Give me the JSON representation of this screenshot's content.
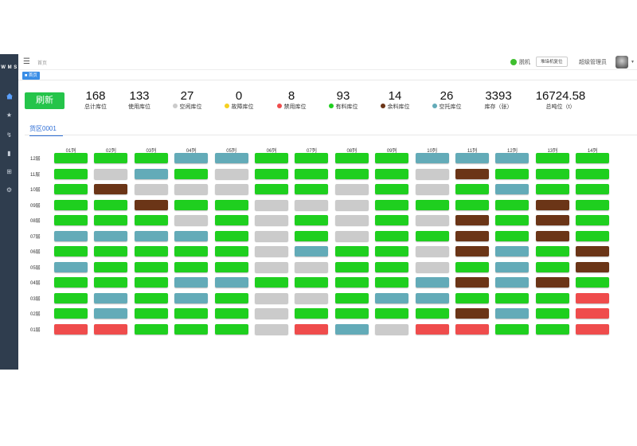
{
  "sidebar": {
    "logo": "W M S",
    "items": [
      "home-icon",
      "star-icon",
      "history-icon",
      "book-icon",
      "grid-icon",
      "gear-icon"
    ]
  },
  "topbar": {
    "menu_icon": "menu-toggle-icon",
    "breadcrumb": "首页",
    "user_text": "脱机",
    "mode_button": "堆垛机复位",
    "admin_name": "超级管理员"
  },
  "tabs": {
    "home": "■ 首页"
  },
  "refresh_label": "刷新",
  "colors": {
    "green": "#1fcf1f",
    "gray": "#cbcbcb",
    "blue": "#63abb8",
    "brown": "#6b3517",
    "red": "#ef4c4c",
    "yellow": "#f5d020"
  },
  "stats": [
    {
      "value": "168",
      "label": "总计库位",
      "dot": ""
    },
    {
      "value": "133",
      "label": "使用库位",
      "dot": ""
    },
    {
      "value": "27",
      "label": "空闲库位",
      "dot": "#cbcbcb"
    },
    {
      "value": "0",
      "label": "故障库位",
      "dot": "#f5d020"
    },
    {
      "value": "8",
      "label": "禁用库位",
      "dot": "#ef4c4c"
    },
    {
      "value": "93",
      "label": "有料库位",
      "dot": "#1fcf1f"
    },
    {
      "value": "14",
      "label": "余料库位",
      "dot": "#6b3517"
    },
    {
      "value": "26",
      "label": "空托库位",
      "dot": "#63abb8"
    },
    {
      "value": "3393",
      "label": "库存（张）",
      "dot": ""
    },
    {
      "value": "16724.58",
      "label": "总吨位（t）",
      "dot": ""
    }
  ],
  "zone_tab": "货区0001",
  "columns": [
    "01列",
    "02列",
    "03列",
    "04列",
    "05列",
    "06列",
    "07列",
    "08列",
    "09列",
    "10列",
    "11列",
    "12列",
    "13列",
    "14列"
  ],
  "rows": [
    {
      "label": "12层",
      "cells": [
        "G",
        "G",
        "G",
        "B",
        "B",
        "G",
        "G",
        "G",
        "G",
        "B",
        "B",
        "B",
        "G",
        "G"
      ]
    },
    {
      "label": "11层",
      "cells": [
        "G",
        "Y",
        "B",
        "G",
        "Y",
        "G",
        "G",
        "G",
        "G",
        "Y",
        "N",
        "G",
        "G",
        "G"
      ]
    },
    {
      "label": "10层",
      "cells": [
        "G",
        "N",
        "Y",
        "Y",
        "Y",
        "G",
        "G",
        "Y",
        "G",
        "Y",
        "G",
        "B",
        "G",
        "G"
      ]
    },
    {
      "label": "09层",
      "cells": [
        "G",
        "G",
        "N",
        "G",
        "G",
        "Y",
        "Y",
        "Y",
        "G",
        "G",
        "G",
        "G",
        "N",
        "G"
      ]
    },
    {
      "label": "08层",
      "cells": [
        "G",
        "G",
        "G",
        "Y",
        "G",
        "Y",
        "G",
        "Y",
        "G",
        "Y",
        "N",
        "G",
        "N",
        "G"
      ]
    },
    {
      "label": "07层",
      "cells": [
        "B",
        "B",
        "B",
        "B",
        "G",
        "Y",
        "G",
        "Y",
        "G",
        "G",
        "N",
        "G",
        "N",
        "G"
      ]
    },
    {
      "label": "06层",
      "cells": [
        "G",
        "G",
        "G",
        "G",
        "G",
        "Y",
        "B",
        "G",
        "G",
        "Y",
        "N",
        "B",
        "G",
        "N"
      ]
    },
    {
      "label": "05层",
      "cells": [
        "B",
        "G",
        "G",
        "G",
        "G",
        "Y",
        "Y",
        "G",
        "G",
        "Y",
        "G",
        "B",
        "G",
        "N"
      ]
    },
    {
      "label": "04层",
      "cells": [
        "G",
        "G",
        "G",
        "B",
        "B",
        "G",
        "G",
        "G",
        "G",
        "B",
        "N",
        "B",
        "N",
        "G"
      ]
    },
    {
      "label": "03层",
      "cells": [
        "G",
        "B",
        "G",
        "B",
        "G",
        "Y",
        "Y",
        "G",
        "B",
        "B",
        "G",
        "G",
        "G",
        "R"
      ]
    },
    {
      "label": "02层",
      "cells": [
        "G",
        "B",
        "G",
        "G",
        "G",
        "Y",
        "G",
        "G",
        "G",
        "G",
        "N",
        "B",
        "G",
        "R"
      ]
    },
    {
      "label": "01层",
      "cells": [
        "R",
        "R",
        "G",
        "G",
        "G",
        "Y",
        "R",
        "B",
        "Y",
        "R",
        "R",
        "G",
        "G",
        "R"
      ]
    }
  ]
}
